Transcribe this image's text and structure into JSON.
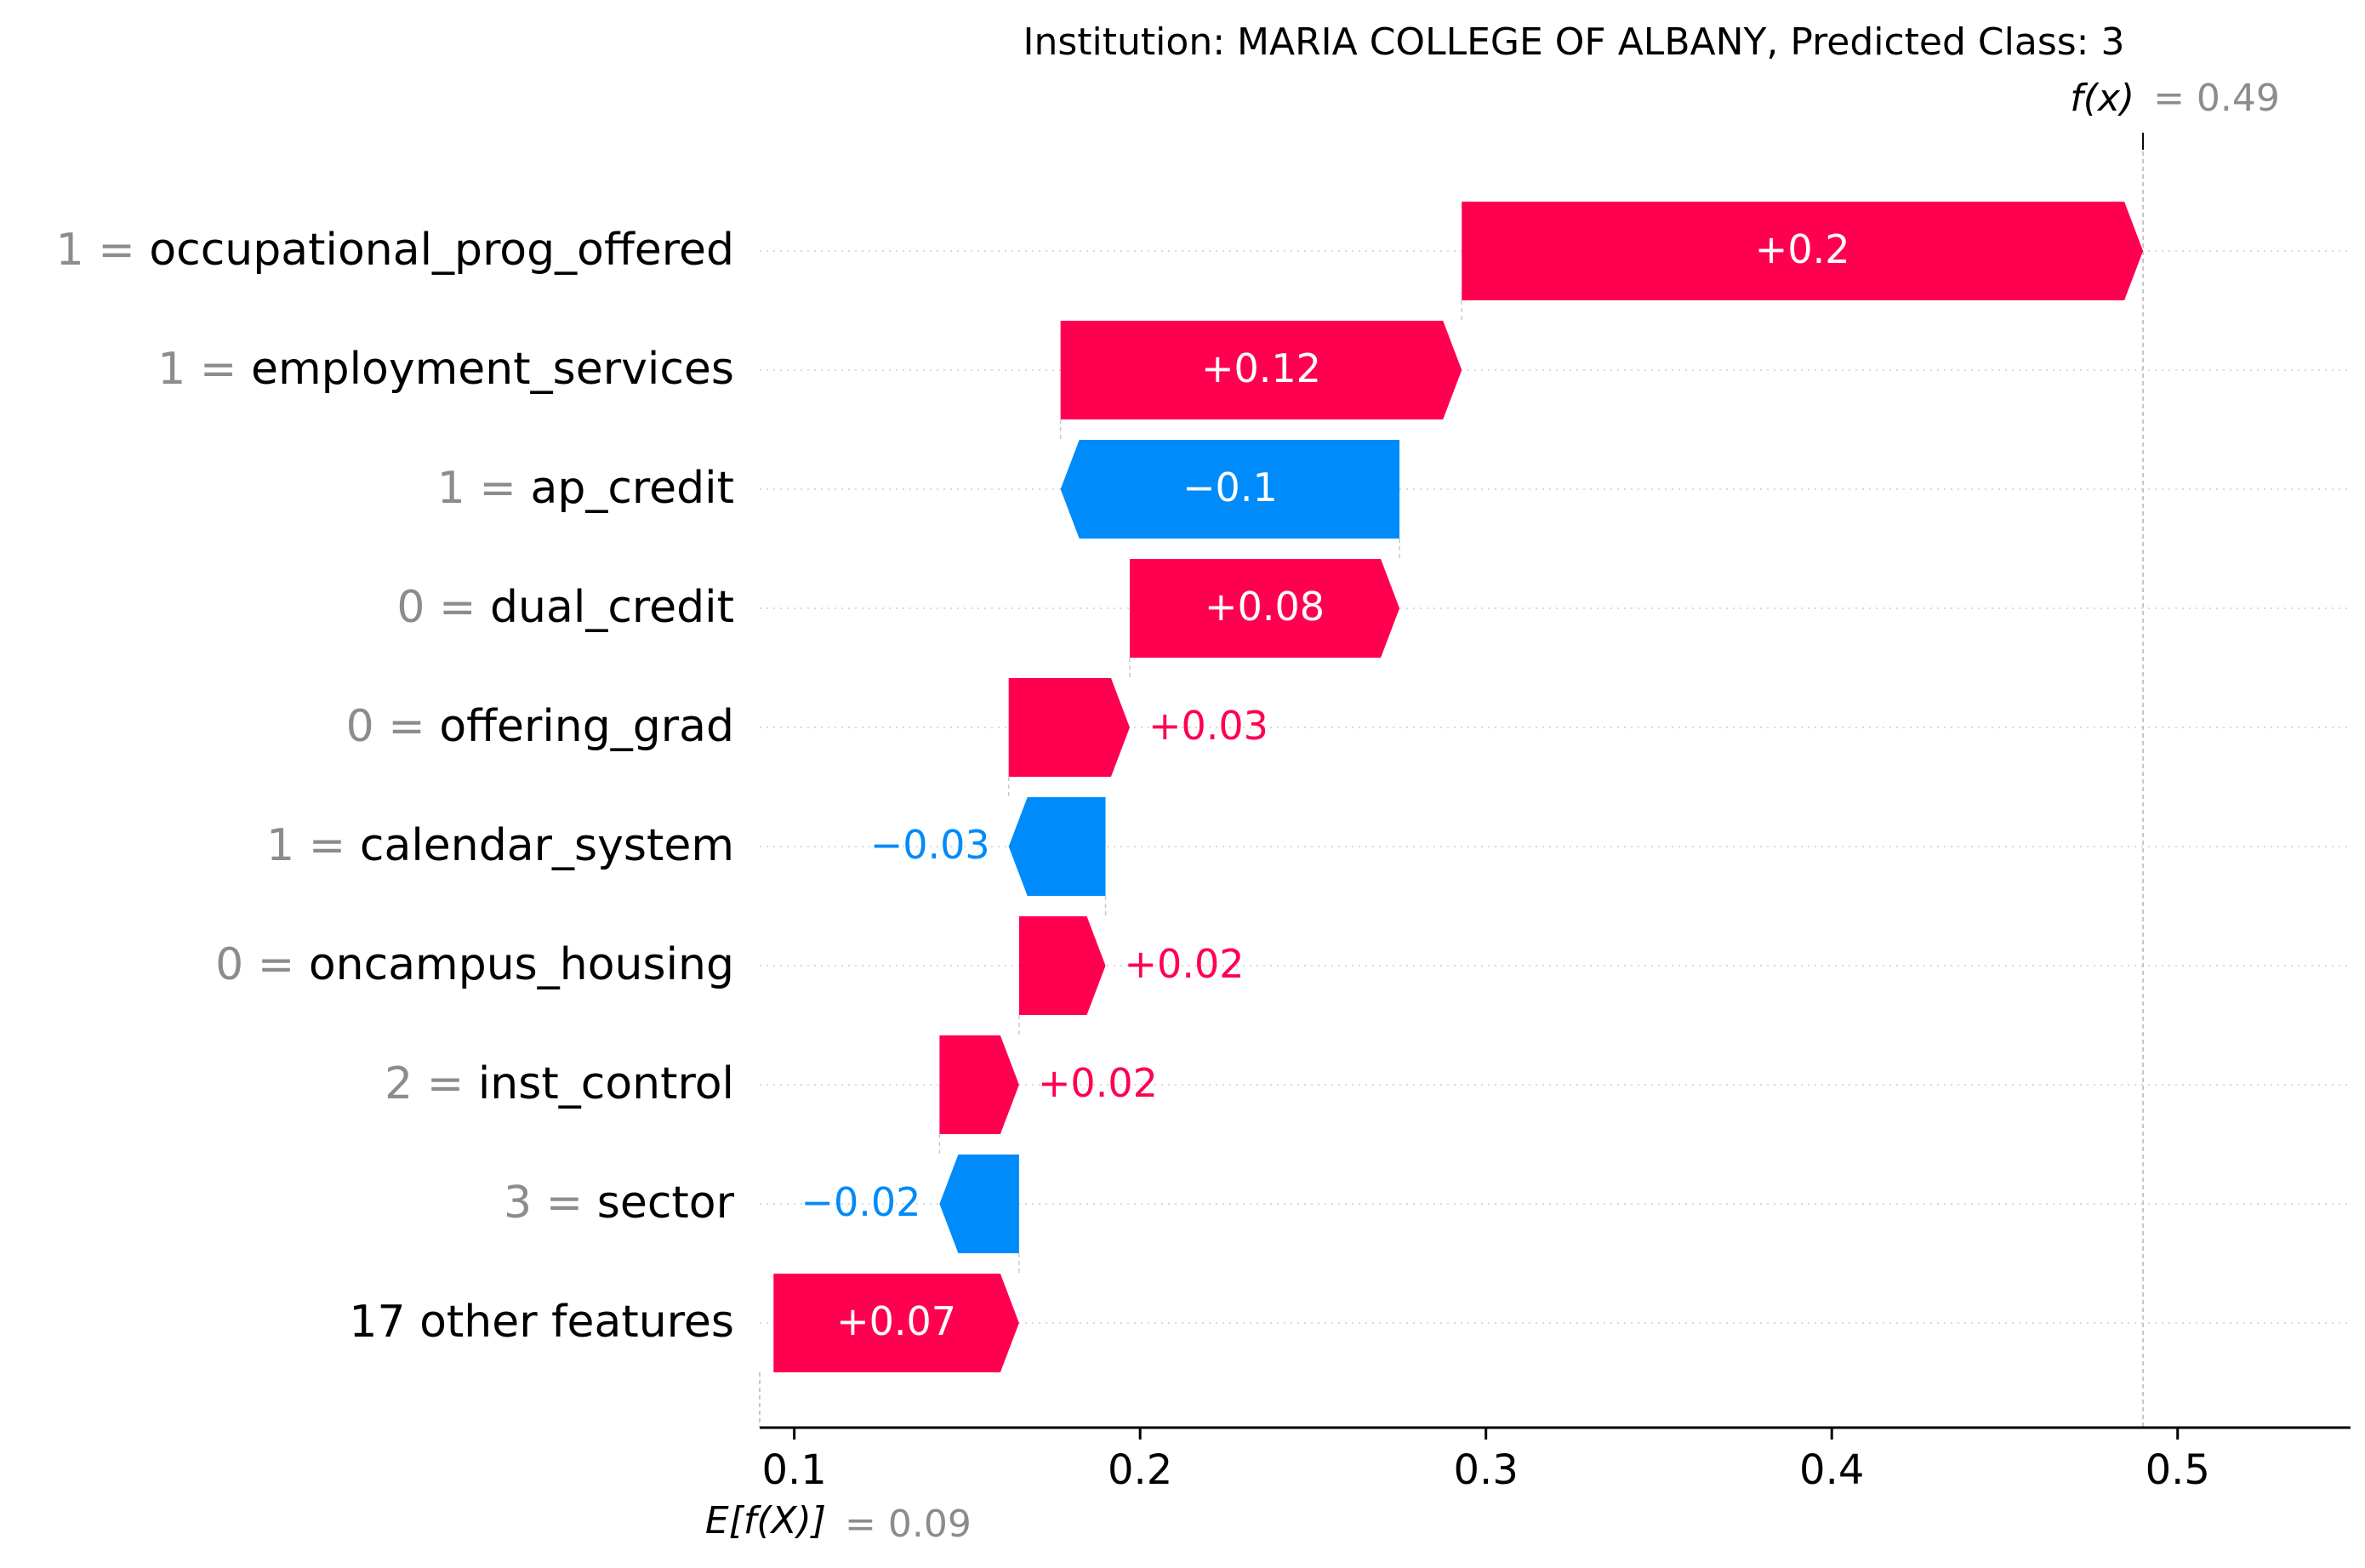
{
  "chart_data": {
    "type": "waterfall",
    "title": "Institution: MARIA COLLEGE OF ALBANY, Predicted Class: 3",
    "fx_label": "f(x)",
    "fx_value": 0.49,
    "fx_value_text": "= 0.49",
    "efx_label": "E[f(X)]",
    "efx_value": 0.09,
    "efx_value_text": "= 0.09",
    "xlim": [
      0.09,
      0.55
    ],
    "xticks": [
      0.1,
      0.2,
      0.3,
      0.4,
      0.5
    ],
    "xtick_labels": [
      "0.1",
      "0.2",
      "0.3",
      "0.4",
      "0.5"
    ],
    "colors": {
      "positive": "#ff0051",
      "negative": "#008bfb",
      "grid": "#d9d9d9",
      "axis": "#000000",
      "muted": "#8c8c8c"
    },
    "features": [
      {
        "value": "1",
        "name": "occupational_prog_offered",
        "start": 0.293,
        "end": 0.49,
        "label": "+0.2"
      },
      {
        "value": "1",
        "name": "employment_services",
        "start": 0.177,
        "end": 0.293,
        "label": "+0.12"
      },
      {
        "value": "1",
        "name": "ap_credit",
        "start": 0.275,
        "end": 0.177,
        "label": "−0.1"
      },
      {
        "value": "0",
        "name": "dual_credit",
        "start": 0.197,
        "end": 0.275,
        "label": "+0.08"
      },
      {
        "value": "0",
        "name": "offering_grad",
        "start": 0.162,
        "end": 0.197,
        "label": "+0.03"
      },
      {
        "value": "1",
        "name": "calendar_system",
        "start": 0.19,
        "end": 0.162,
        "label": "−0.03"
      },
      {
        "value": "0",
        "name": "oncampus_housing",
        "start": 0.165,
        "end": 0.19,
        "label": "+0.02"
      },
      {
        "value": "2",
        "name": "inst_control",
        "start": 0.142,
        "end": 0.165,
        "label": "+0.02"
      },
      {
        "value": "3",
        "name": "sector",
        "start": 0.165,
        "end": 0.142,
        "label": "−0.02"
      },
      {
        "value": "",
        "name": "17 other features",
        "start": 0.094,
        "end": 0.165,
        "label": "+0.07"
      }
    ]
  }
}
